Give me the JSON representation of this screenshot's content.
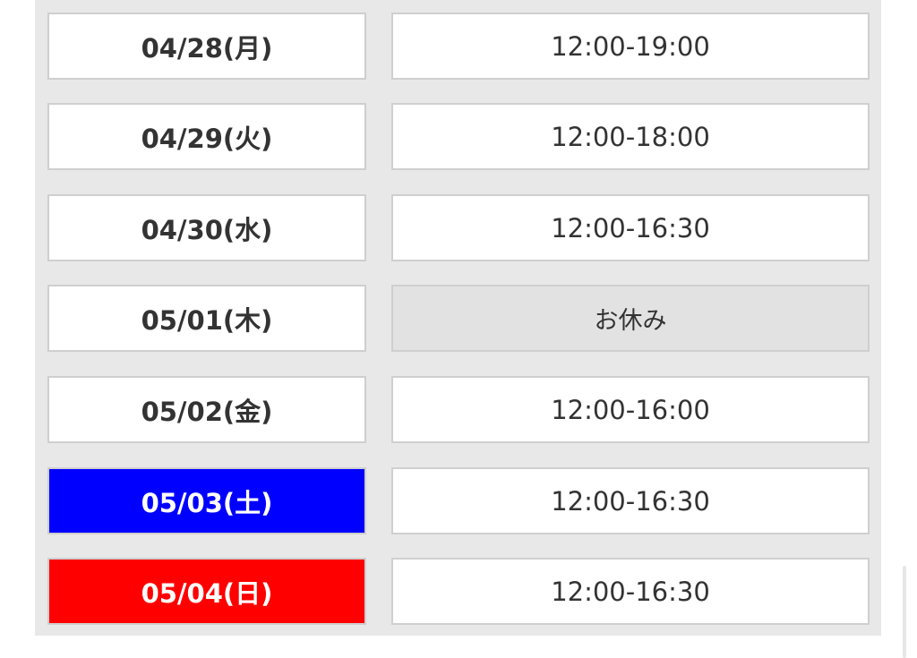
{
  "schedule": [
    {
      "date": "04/28(月)",
      "hours": "12:00-19:00",
      "type": "weekday",
      "closed": false
    },
    {
      "date": "04/29(火)",
      "hours": "12:00-18:00",
      "type": "weekday",
      "closed": false
    },
    {
      "date": "04/30(水)",
      "hours": "12:00-16:30",
      "type": "weekday",
      "closed": false
    },
    {
      "date": "05/01(木)",
      "hours": "お休み",
      "type": "weekday",
      "closed": true
    },
    {
      "date": "05/02(金)",
      "hours": "12:00-16:00",
      "type": "weekday",
      "closed": false
    },
    {
      "date": "05/03(土)",
      "hours": "12:00-16:30",
      "type": "saturday",
      "closed": false
    },
    {
      "date": "05/04(日)",
      "hours": "12:00-16:30",
      "type": "sunday",
      "closed": false
    }
  ],
  "colors": {
    "saturday": "#0000ff",
    "sunday": "#ff0000",
    "closed": "#e2e2e2",
    "panel": "#e8e8e8"
  }
}
